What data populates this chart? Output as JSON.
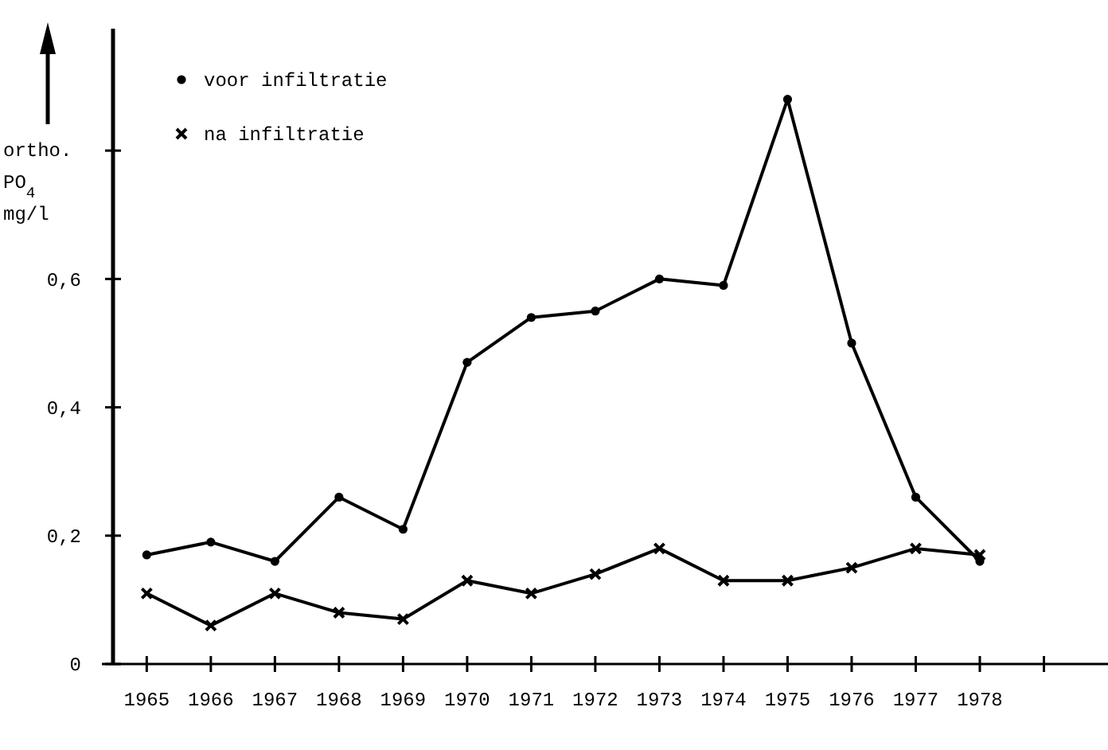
{
  "chart_data": {
    "type": "line",
    "ylabel": "ortho.\nPO$_{4}$\nmg/l",
    "x": [
      1965,
      1966,
      1967,
      1968,
      1969,
      1970,
      1971,
      1972,
      1973,
      1974,
      1975,
      1976,
      1977,
      1978
    ],
    "series": [
      {
        "name": "voor infiltratie",
        "color": "#000000",
        "marker": "circle",
        "values": [
          0.17,
          0.19,
          0.16,
          0.26,
          0.21,
          0.47,
          0.54,
          0.55,
          0.6,
          0.59,
          0.88,
          0.5,
          0.26,
          0.16
        ]
      },
      {
        "name": "na infiltratie",
        "color": "#000000",
        "marker": "cross",
        "values": [
          0.11,
          0.06,
          0.11,
          0.08,
          0.07,
          0.13,
          0.11,
          0.14,
          0.18,
          0.13,
          0.13,
          0.15,
          0.18,
          0.17
        ]
      }
    ],
    "xlim": [
      1964.3,
      1980
    ],
    "xticks": [
      1965,
      1966,
      1967,
      1968,
      1969,
      1970,
      1971,
      1972,
      1973,
      1974,
      1975,
      1976,
      1977,
      1978,
      {
        "value": 1979,
        "label": null
      }
    ],
    "ylim": [
      0,
      0.99
    ],
    "yticks": [
      0,
      {
        "value": 0.2,
        "label": "0,2"
      },
      {
        "value": 0.4,
        "label": "0,4"
      },
      {
        "value": 0.6,
        "label": "0,6"
      },
      {
        "value": 0.8,
        "label": null
      }
    ],
    "grid": false,
    "legend": "top left",
    "line_style": "solid"
  }
}
